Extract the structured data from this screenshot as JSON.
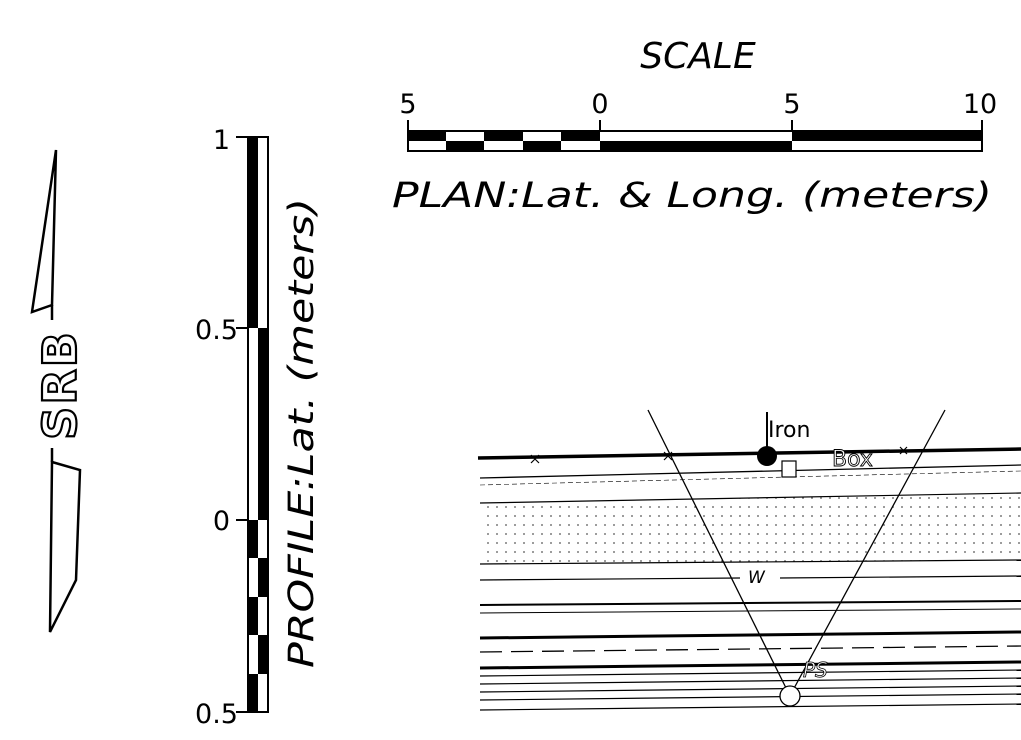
{
  "north_arrow": {
    "label": "SRB"
  },
  "plan_scale": {
    "title": "SCALE",
    "tick_labels": [
      "5",
      "0",
      "5",
      "10"
    ],
    "caption": "PLAN:Lat. & Long. (meters)"
  },
  "profile_scale": {
    "tick_labels": [
      "1",
      "0.5",
      "0",
      "0.5"
    ],
    "caption": "PROFILE:Lat. (meters)"
  },
  "section": {
    "labels": {
      "iron": "Iron",
      "box": "Box",
      "w": "W",
      "ps": "PS"
    }
  },
  "colors": {
    "ink": "#000000",
    "paper": "#ffffff",
    "stipple": "#555555"
  }
}
